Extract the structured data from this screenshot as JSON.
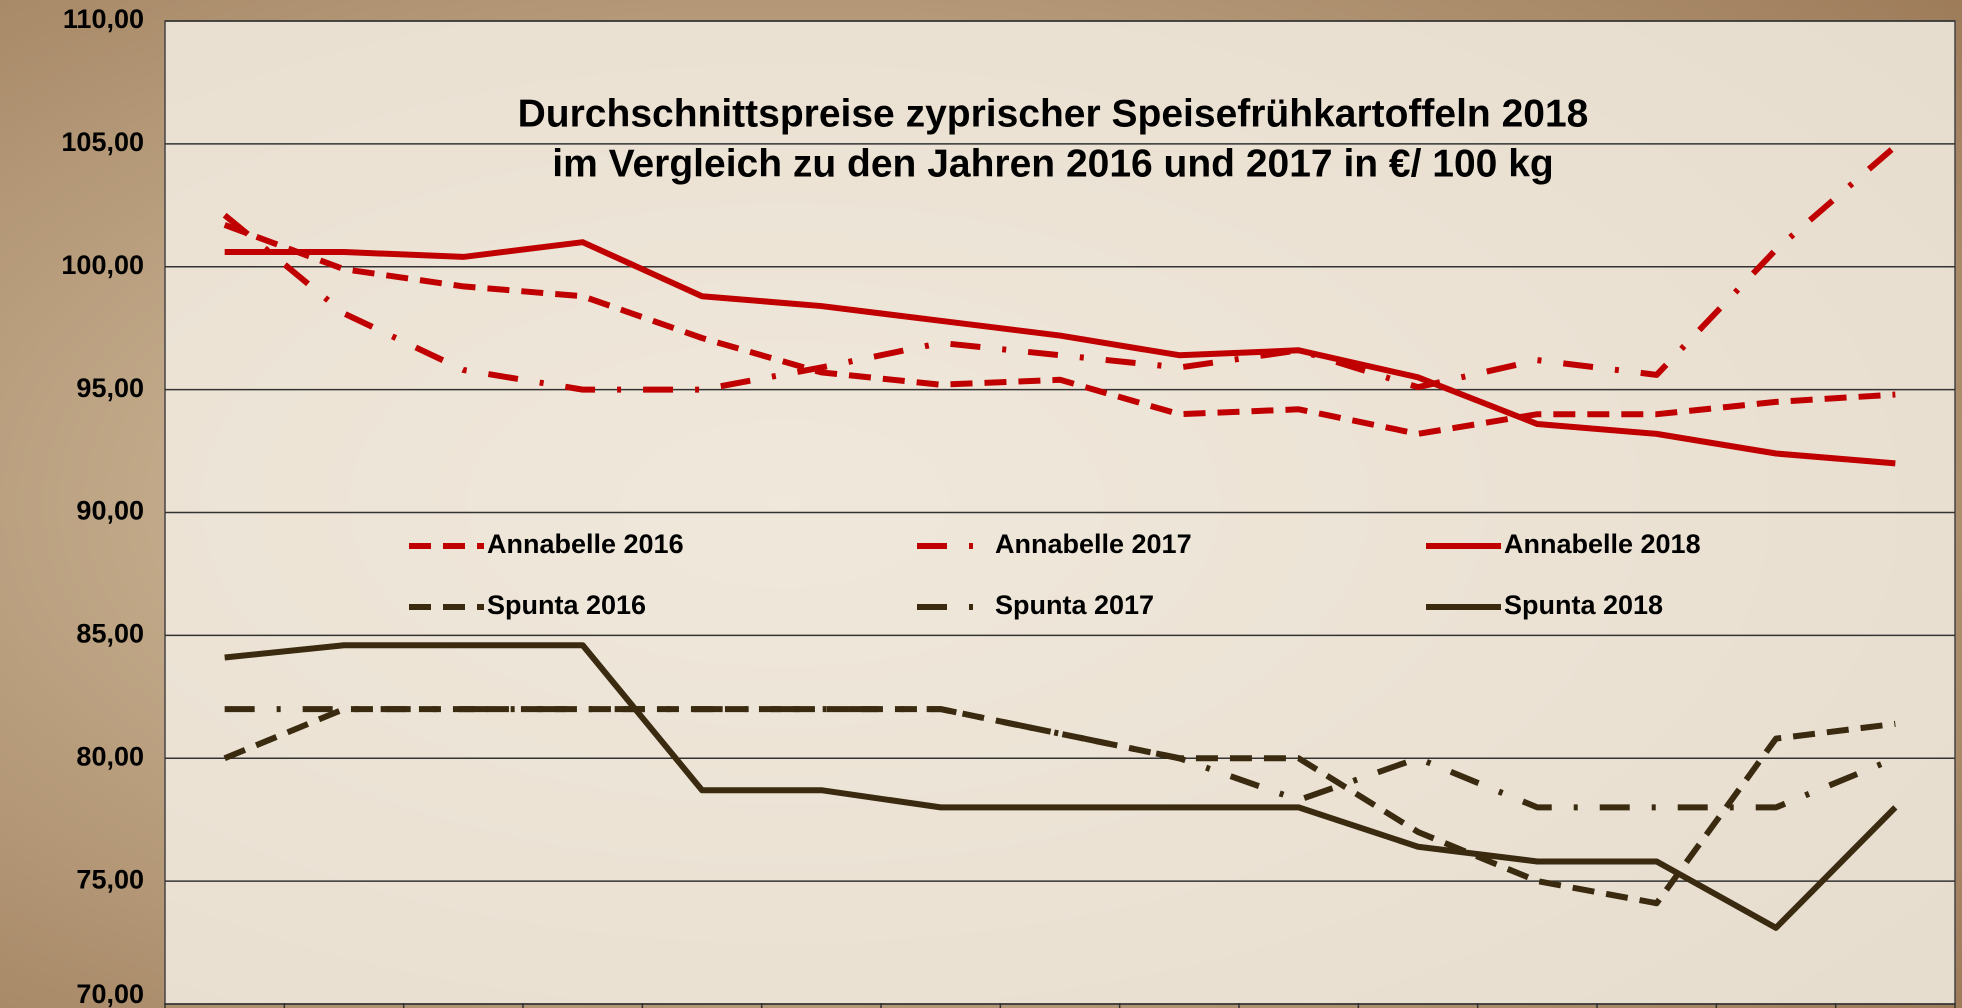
{
  "chart_data": {
    "type": "line",
    "title": [
      "Durchschnittspreise zyprischer Speisefrühkartoffeln 2018",
      "im Vergleich zu den Jahren 2016 und 2017 in €/ 100 kg"
    ],
    "categories": [
      null,
      null,
      null,
      null,
      null,
      null,
      null,
      null,
      null,
      null,
      null,
      null,
      null,
      null,
      null
    ],
    "series": [
      {
        "name": "Annabelle 2016",
        "color": "#c00000",
        "dash": "dashed",
        "values": [
          101.7,
          99.9,
          99.2,
          98.8,
          97.1,
          95.7,
          95.2,
          95.4,
          94.0,
          94.2,
          93.2,
          94.0,
          94.0,
          94.5,
          94.8
        ]
      },
      {
        "name": "Annabelle 2017",
        "color": "#c00000",
        "dash": "dashdot",
        "values": [
          102.1,
          98.1,
          95.8,
          95.0,
          95.0,
          95.9,
          96.9,
          96.4,
          95.9,
          96.6,
          95.1,
          96.2,
          95.6,
          100.7,
          104.9
        ]
      },
      {
        "name": "Annabelle 2018",
        "color": "#c00000",
        "dash": "solid",
        "values": [
          100.6,
          100.6,
          100.4,
          101.0,
          98.8,
          98.4,
          97.8,
          97.2,
          96.4,
          96.6,
          95.5,
          93.6,
          93.2,
          92.4,
          92.0
        ]
      },
      {
        "name": "Spunta 2016",
        "color": "#3a2a10",
        "dash": "dashed",
        "values": [
          80.0,
          82.0,
          82.0,
          82.0,
          82.0,
          82.0,
          82.0,
          81.0,
          80.0,
          80.0,
          77.0,
          75.0,
          74.1,
          80.8,
          81.4
        ]
      },
      {
        "name": "Spunta 2017",
        "color": "#3a2a10",
        "dash": "dashdot",
        "values": [
          82.0,
          82.0,
          82.0,
          82.0,
          82.0,
          82.0,
          82.0,
          81.0,
          80.0,
          78.3,
          80.0,
          78.0,
          78.0,
          78.0,
          80.0
        ]
      },
      {
        "name": "Spunta 2018",
        "color": "#3a2a10",
        "dash": "solid",
        "values": [
          84.1,
          84.6,
          84.6,
          84.6,
          78.7,
          78.7,
          78.0,
          78.0,
          78.0,
          78.0,
          76.4,
          75.8,
          75.8,
          73.1,
          78.0
        ]
      }
    ],
    "ylim": [
      70,
      110
    ],
    "yticks": [
      {
        "value": 70,
        "label": "70,00"
      },
      {
        "value": 75,
        "label": "75,00"
      },
      {
        "value": 80,
        "label": "80,00"
      },
      {
        "value": 85,
        "label": "85,00"
      },
      {
        "value": 90,
        "label": "90,00"
      },
      {
        "value": 95,
        "label": "95,00"
      },
      {
        "value": 100,
        "label": "100,00"
      },
      {
        "value": 105,
        "label": "105,00"
      },
      {
        "value": 110,
        "label": "110,00"
      }
    ],
    "grid": true
  }
}
